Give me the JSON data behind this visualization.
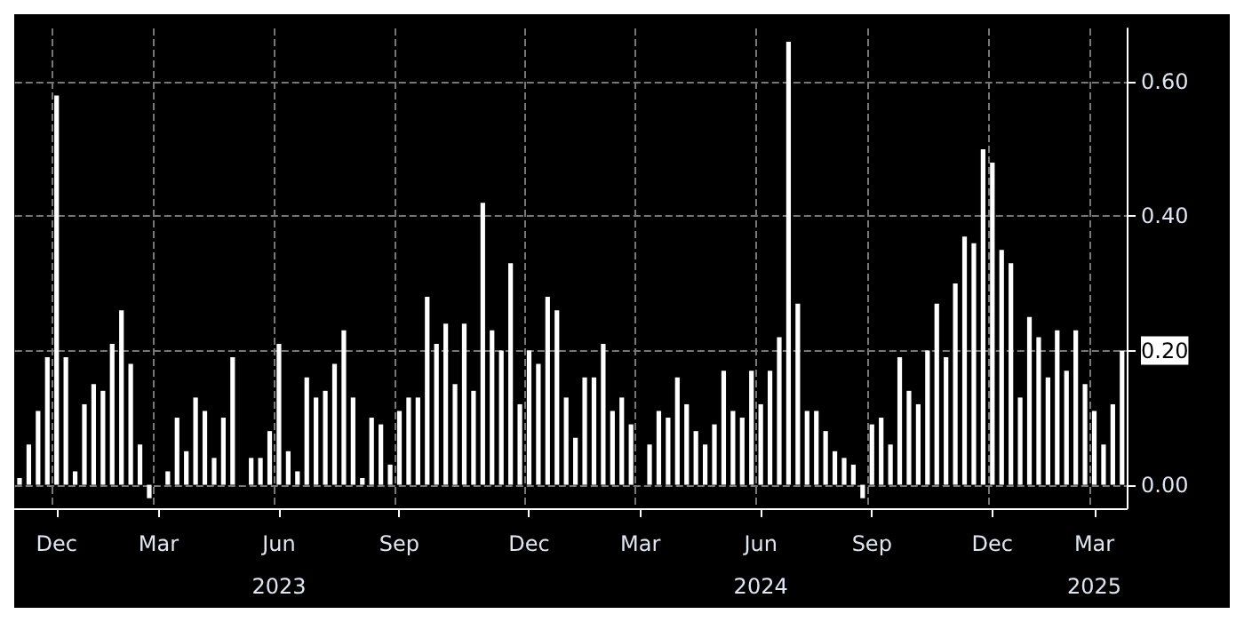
{
  "chart_data": {
    "type": "bar",
    "categories": [
      null,
      null,
      null,
      null,
      "Dec",
      null,
      null,
      null,
      null,
      null,
      null,
      null,
      null,
      null,
      null,
      "Mar",
      null,
      null,
      null,
      null,
      null,
      null,
      null,
      null,
      null,
      null,
      null,
      null,
      "Jun\n2023",
      null,
      null,
      null,
      null,
      null,
      null,
      null,
      null,
      null,
      null,
      null,
      null,
      "Sep",
      null,
      null,
      null,
      null,
      null,
      null,
      null,
      null,
      null,
      null,
      null,
      null,
      null,
      "Dec",
      null,
      null,
      null,
      null,
      null,
      null,
      null,
      null,
      null,
      null,
      null,
      "Mar",
      null,
      null,
      null,
      null,
      null,
      null,
      null,
      null,
      null,
      null,
      null,
      null,
      "Jun\n2024",
      null,
      null,
      null,
      null,
      null,
      null,
      null,
      null,
      null,
      null,
      null,
      "Sep",
      null,
      null,
      null,
      null,
      null,
      null,
      null,
      null,
      null,
      null,
      null,
      null,
      "Dec",
      null,
      null,
      null,
      null,
      null,
      null,
      null,
      null,
      null,
      null,
      "Mar\n2025",
      null,
      null,
      null
    ],
    "values": [
      0.01,
      0.06,
      0.11,
      0.19,
      0.58,
      0.19,
      0.02,
      0.12,
      0.15,
      0.14,
      0.21,
      0.26,
      0.18,
      0.06,
      -0.02,
      0.0,
      0.02,
      0.1,
      0.05,
      0.13,
      0.11,
      0.04,
      0.1,
      0.19,
      0.0,
      0.04,
      0.04,
      0.08,
      0.21,
      0.05,
      0.02,
      0.16,
      0.13,
      0.14,
      0.18,
      0.23,
      0.13,
      0.01,
      0.1,
      0.09,
      0.03,
      0.11,
      0.13,
      0.13,
      0.28,
      0.21,
      0.24,
      0.15,
      0.24,
      0.14,
      0.42,
      0.23,
      0.2,
      0.33,
      0.12,
      0.2,
      0.18,
      0.28,
      0.26,
      0.13,
      0.07,
      0.16,
      0.16,
      0.21,
      0.11,
      0.13,
      0.09,
      0.0,
      0.06,
      0.11,
      0.1,
      0.16,
      0.12,
      0.08,
      0.06,
      0.09,
      0.17,
      0.11,
      0.1,
      0.17,
      0.12,
      0.17,
      0.22,
      0.66,
      0.27,
      0.11,
      0.11,
      0.08,
      0.05,
      0.04,
      0.03,
      -0.02,
      0.09,
      0.1,
      0.06,
      0.19,
      0.14,
      0.12,
      0.2,
      0.27,
      0.19,
      0.3,
      0.37,
      0.36,
      0.5,
      0.48,
      0.35,
      0.33,
      0.13,
      0.25,
      0.22,
      0.16,
      0.23,
      0.17,
      0.23,
      0.15,
      0.11,
      0.06,
      0.12,
      0.2
    ],
    "color": "#ffffff",
    "ylim": [
      -0.035,
      0.68
    ],
    "yticks": [
      {
        "value": 0,
        "label": "0.00"
      },
      {
        "value": 0.2,
        "label": "0.20"
      },
      {
        "value": 0.4,
        "label": "0.40"
      },
      {
        "value": 0.6,
        "label": "0.60"
      }
    ],
    "grid": true
  }
}
